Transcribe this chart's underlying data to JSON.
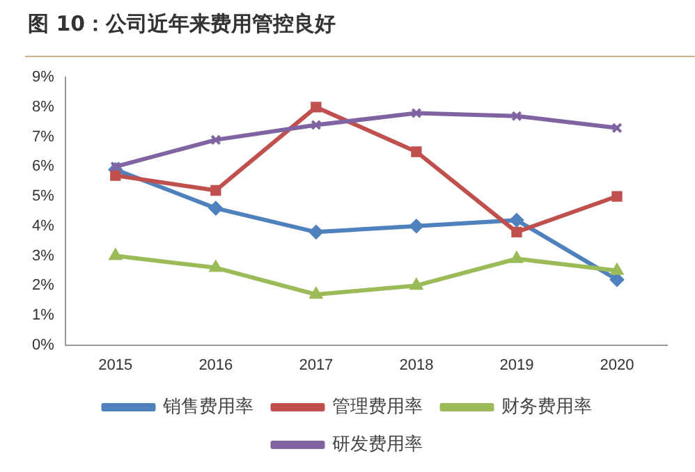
{
  "chart_data": {
    "type": "line",
    "title": "图 10：公司近年来费用管控良好",
    "categories": [
      "2015",
      "2016",
      "2017",
      "2018",
      "2019",
      "2020"
    ],
    "series": [
      {
        "name": "销售费用率",
        "color": "#4f81bd",
        "marker": "diamond",
        "values": [
          5.9,
          4.6,
          3.8,
          4.0,
          4.2,
          2.2
        ]
      },
      {
        "name": "管理费用率",
        "color": "#c0504d",
        "marker": "square",
        "values": [
          5.7,
          5.2,
          8.0,
          6.5,
          3.8,
          5.0
        ]
      },
      {
        "name": "财务费用率",
        "color": "#9bbb59",
        "marker": "triangle",
        "values": [
          3.0,
          2.6,
          1.7,
          2.0,
          2.9,
          2.5
        ]
      },
      {
        "name": "研发费用率",
        "color": "#8064a2",
        "marker": "cross",
        "values": [
          6.0,
          6.9,
          7.4,
          7.8,
          7.7,
          7.3
        ]
      }
    ],
    "ylim": [
      0,
      9
    ],
    "yticks": [
      {
        "value": 0,
        "label": "0%"
      },
      {
        "value": 1,
        "label": "1%"
      },
      {
        "value": 2,
        "label": "2%"
      },
      {
        "value": 3,
        "label": "3%"
      },
      {
        "value": 4,
        "label": "4%"
      },
      {
        "value": 5,
        "label": "5%"
      },
      {
        "value": 6,
        "label": "6%"
      },
      {
        "value": 7,
        "label": "7%"
      },
      {
        "value": 8,
        "label": "8%"
      },
      {
        "value": 9,
        "label": "9%"
      }
    ],
    "grid": false,
    "legend": "bottom",
    "line_style": "solid"
  }
}
